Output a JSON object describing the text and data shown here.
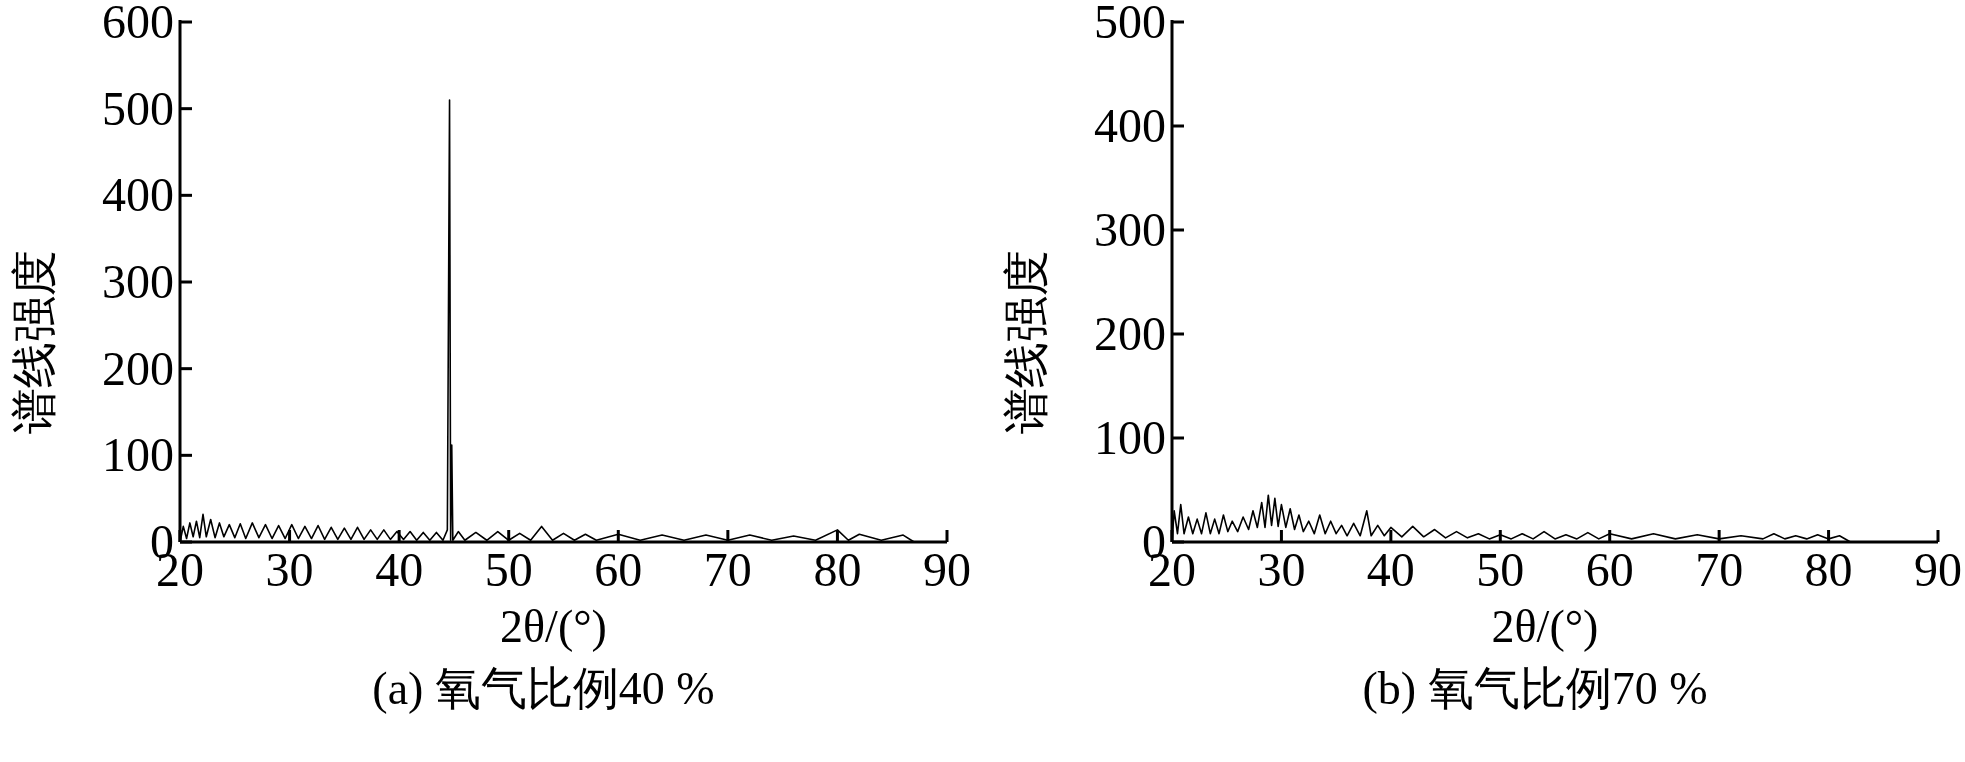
{
  "chart_data": [
    {
      "type": "line",
      "title": "(a) 氧气比例40 %",
      "xlabel": "2θ/(°)",
      "ylabel": "谱线强度",
      "xlim": [
        20,
        90
      ],
      "ylim": [
        0,
        600
      ],
      "xticks": [
        20,
        30,
        40,
        50,
        60,
        70,
        80,
        90
      ],
      "yticks": [
        0,
        100,
        200,
        300,
        400,
        500,
        600
      ],
      "line_style": "solid",
      "series": [
        {
          "color": "#000000",
          "x": [
            20,
            20.3,
            20.6,
            20.9,
            21.2,
            21.5,
            21.8,
            22.1,
            22.4,
            22.8,
            23.2,
            23.6,
            24,
            24.5,
            25,
            25.5,
            26,
            26.6,
            27.2,
            27.8,
            28.4,
            29,
            29.6,
            30.2,
            30.8,
            31.4,
            32,
            32.6,
            33.2,
            33.8,
            34.4,
            35,
            35.6,
            36.2,
            36.8,
            37.4,
            38,
            38.6,
            39.2,
            39.8,
            40.4,
            41,
            41.6,
            42.2,
            42.8,
            43.4,
            44,
            44.4,
            44.6,
            44.7,
            44.8,
            44.9,
            45.4,
            46,
            47,
            48,
            49,
            50,
            51,
            52,
            53,
            54,
            55,
            56,
            57,
            58,
            60,
            62,
            64,
            66,
            68,
            70,
            72,
            74,
            76,
            78,
            80,
            81,
            82,
            84,
            86,
            87
          ],
          "values": [
            0,
            18,
            4,
            22,
            6,
            24,
            5,
            32,
            6,
            26,
            5,
            22,
            6,
            20,
            5,
            21,
            4,
            22,
            5,
            20,
            4,
            19,
            4,
            20,
            4,
            18,
            4,
            19,
            3,
            17,
            3,
            16,
            3,
            17,
            3,
            14,
            3,
            14,
            3,
            12,
            3,
            12,
            2,
            11,
            2,
            11,
            2,
            14,
            510,
            2,
            112,
            2,
            12,
            2,
            11,
            2,
            12,
            2,
            10,
            2,
            18,
            2,
            10,
            2,
            9,
            2,
            9,
            2,
            8,
            2,
            8,
            2,
            8,
            2,
            7,
            2,
            14,
            2,
            9,
            2,
            8,
            0
          ]
        }
      ]
    },
    {
      "type": "line",
      "title": "(b) 氧气比例70 %",
      "xlabel": "2θ/(°)",
      "ylabel": "谱线强度",
      "xlim": [
        20,
        90
      ],
      "ylim": [
        0,
        500
      ],
      "xticks": [
        20,
        30,
        40,
        50,
        60,
        70,
        80,
        90
      ],
      "yticks": [
        0,
        100,
        200,
        300,
        400,
        500
      ],
      "line_style": "solid",
      "series": [
        {
          "color": "#000000",
          "x": [
            20,
            20.2,
            20.5,
            20.8,
            21.1,
            21.5,
            21.9,
            22.3,
            22.7,
            23.1,
            23.5,
            23.9,
            24.3,
            24.7,
            25.1,
            25.5,
            26,
            26.5,
            27,
            27.4,
            27.8,
            28.2,
            28.5,
            28.8,
            29.1,
            29.4,
            29.7,
            30,
            30.4,
            30.8,
            31.2,
            31.6,
            32,
            32.5,
            33,
            33.5,
            34,
            34.5,
            35,
            35.5,
            36,
            36.6,
            37.2,
            37.8,
            38.2,
            38.8,
            39.4,
            40,
            41,
            42,
            43,
            44,
            45,
            46,
            47,
            48,
            49,
            50,
            51,
            52,
            53,
            54,
            55,
            56,
            57,
            58,
            59,
            60,
            62,
            64,
            66,
            68,
            70,
            72,
            74,
            75,
            76,
            77,
            78,
            79,
            80,
            81,
            82
          ],
          "values": [
            0,
            30,
            8,
            36,
            8,
            24,
            8,
            22,
            8,
            28,
            8,
            22,
            8,
            26,
            10,
            20,
            10,
            24,
            12,
            30,
            14,
            38,
            14,
            45,
            16,
            42,
            15,
            36,
            14,
            32,
            12,
            26,
            10,
            20,
            8,
            26,
            8,
            20,
            8,
            16,
            6,
            18,
            6,
            30,
            6,
            16,
            6,
            14,
            5,
            15,
            5,
            12,
            4,
            10,
            4,
            8,
            3,
            7,
            3,
            8,
            3,
            10,
            3,
            7,
            3,
            9,
            3,
            8,
            3,
            8,
            3,
            7,
            3,
            6,
            3,
            8,
            3,
            6,
            3,
            7,
            3,
            6,
            0
          ]
        }
      ]
    }
  ]
}
